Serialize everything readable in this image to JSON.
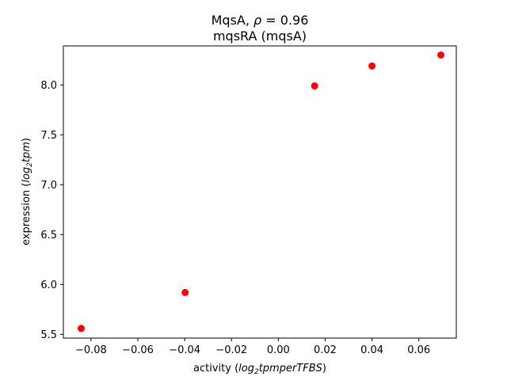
{
  "chart_data": {
    "type": "scatter",
    "title_parts": [
      "MqsA, ",
      "ρ",
      " = 0.96"
    ],
    "subtitle": "mqsRA (mqsA)",
    "xlabel_parts": [
      "activity (",
      "log",
      "2",
      "tpmperTFBS",
      ")"
    ],
    "ylabel_parts": [
      "expression (",
      "log",
      "2",
      "tpm",
      ")"
    ],
    "xlim": [
      -0.0918,
      0.076
    ],
    "ylim": [
      5.463,
      8.391
    ],
    "xticks": [
      -0.08,
      -0.06,
      -0.04,
      -0.02,
      0.0,
      0.02,
      0.04,
      0.06
    ],
    "xtick_labels": [
      "−0.08",
      "−0.06",
      "−0.04",
      "−0.02",
      "0.00",
      "0.02",
      "0.04",
      "0.06"
    ],
    "yticks": [
      5.5,
      6.0,
      6.5,
      7.0,
      7.5,
      8.0
    ],
    "ytick_labels": [
      "5.5",
      "6.0",
      "6.5",
      "7.0",
      "7.5",
      "8.0"
    ],
    "points": [
      {
        "x": -0.0842,
        "y": 5.56
      },
      {
        "x": -0.0398,
        "y": 5.92
      },
      {
        "x": 0.0155,
        "y": 7.99
      },
      {
        "x": 0.04,
        "y": 8.19
      },
      {
        "x": 0.0694,
        "y": 8.3
      }
    ],
    "marker_color": "#ff0000",
    "grid": false,
    "legend": null
  }
}
